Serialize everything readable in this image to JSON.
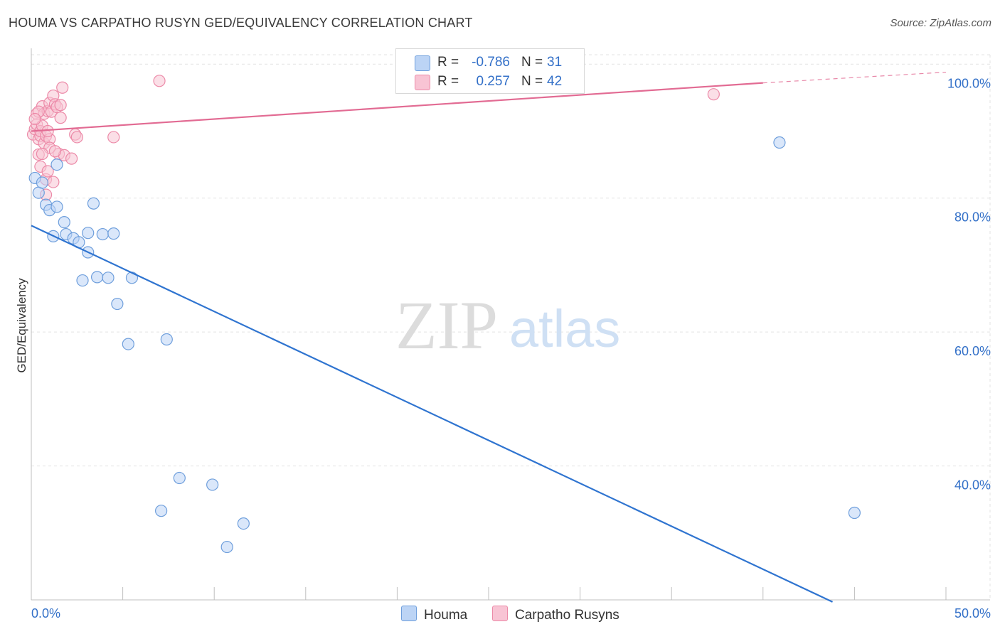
{
  "title": "HOUMA VS CARPATHO RUSYN GED/EQUIVALENCY CORRELATION CHART",
  "source": "Source: ZipAtlas.com",
  "watermark": {
    "zip": "ZIP",
    "atlas": "atlas"
  },
  "colors": {
    "houma_fill": "#bcd4f5",
    "houma_stroke": "#6f9fdc",
    "houma_line": "#2f74d0",
    "rusyn_fill": "#f8c4d4",
    "rusyn_stroke": "#ec8aa8",
    "rusyn_line": "#e26b93",
    "value_text": "#3370c8",
    "grid": "#e3e3e3"
  },
  "legend": {
    "rows": [
      {
        "r_label": "R =",
        "r_value": "-0.786",
        "n_label": "N =",
        "n_value": "31"
      },
      {
        "r_label": "R =",
        "r_value": "0.257",
        "n_label": "N =",
        "n_value": "42"
      }
    ]
  },
  "chart_data": {
    "type": "scatter",
    "title": "HOUMA VS CARPATHO RUSYN GED/EQUIVALENCY CORRELATION CHART",
    "xlabel": "",
    "ylabel": "GED/Equivalency",
    "xlim": [
      0,
      50
    ],
    "ylim": [
      20,
      103
    ],
    "x_tick_labels": [
      "0.0%",
      "50.0%"
    ],
    "y_ticks": [
      40,
      60,
      80,
      100
    ],
    "y_tick_labels": [
      "40.0%",
      "60.0%",
      "80.0%",
      "100.0%"
    ],
    "series": [
      {
        "name": "Houma",
        "x": [
          0.2,
          0.4,
          0.6,
          0.8,
          1.0,
          1.2,
          1.4,
          1.4,
          1.8,
          1.9,
          2.3,
          2.6,
          2.8,
          3.1,
          3.1,
          3.4,
          3.6,
          3.9,
          4.2,
          4.5,
          4.7,
          5.3,
          5.5,
          7.1,
          7.4,
          8.1,
          9.9,
          10.7,
          11.6,
          40.9,
          45.0
        ],
        "y": [
          83.0,
          80.8,
          82.3,
          79.0,
          78.2,
          74.3,
          85.0,
          78.7,
          76.4,
          74.6,
          74.0,
          73.4,
          67.7,
          74.8,
          71.9,
          79.2,
          68.2,
          74.6,
          68.1,
          74.7,
          64.2,
          58.2,
          68.1,
          33.3,
          58.9,
          38.2,
          37.2,
          27.9,
          31.4,
          88.3,
          33.0
        ],
        "trend": {
          "x": [
            0,
            43.8
          ],
          "y": [
            75.9,
            19.7
          ]
        }
      },
      {
        "name": "Carpatho Rusyns",
        "x": [
          0.1,
          0.2,
          0.3,
          0.3,
          0.4,
          0.4,
          0.5,
          0.5,
          0.5,
          0.6,
          0.6,
          0.7,
          0.7,
          0.8,
          0.8,
          0.8,
          0.9,
          0.9,
          1.0,
          1.0,
          1.1,
          1.2,
          1.2,
          1.3,
          1.4,
          1.5,
          1.6,
          1.6,
          1.7,
          1.8,
          2.2,
          2.4,
          2.5,
          1.0,
          4.5,
          7.0,
          37.3,
          0.4,
          0.6,
          0.9,
          1.3,
          0.2
        ],
        "y": [
          89.5,
          90.3,
          92.6,
          91.0,
          86.5,
          88.8,
          89.3,
          84.7,
          90.0,
          93.7,
          90.8,
          92.6,
          88.2,
          89.3,
          82.8,
          80.5,
          93.0,
          84.0,
          94.2,
          88.8,
          92.9,
          95.3,
          82.4,
          94.0,
          93.6,
          86.6,
          93.9,
          92.0,
          96.5,
          86.4,
          85.9,
          89.5,
          89.1,
          87.5,
          89.1,
          97.5,
          95.5,
          92.9,
          86.6,
          90.0,
          87.0,
          91.8
        ],
        "trend": {
          "x": [
            0,
            40
          ],
          "y": [
            90.0,
            97.2
          ]
        },
        "trend_dashed": {
          "x": [
            40,
            50
          ],
          "y": [
            97.2,
            98.8
          ]
        }
      }
    ]
  },
  "bottom_legend": {
    "houma": "Houma",
    "rusyn": "Carpatho Rusyns"
  }
}
